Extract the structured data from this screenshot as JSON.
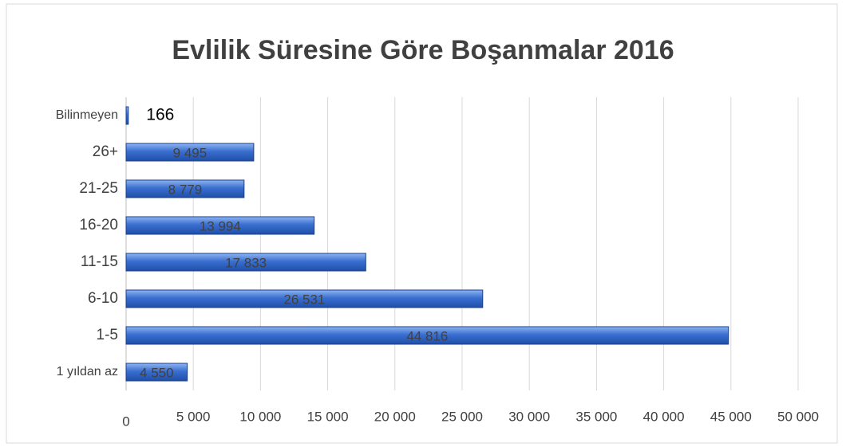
{
  "chart_data": {
    "type": "bar",
    "orientation": "horizontal",
    "title": "Evlilik Süresine Göre Boşanmalar 2016",
    "categories": [
      "1 yıldan az",
      "1-5",
      "6-10",
      "11-15",
      "16-20",
      "21-25",
      "26+",
      "Bilinmeyen"
    ],
    "values": [
      4550,
      44816,
      26531,
      17833,
      13994,
      8779,
      9495,
      166
    ],
    "value_labels": [
      "4 550",
      "44 816",
      "26 531",
      "17 833",
      "13 994",
      "8 779",
      "9 495",
      "166"
    ],
    "color": "#3a6fd0",
    "xlim": [
      0,
      50000
    ],
    "xticks": [
      0,
      {
        "value": 5000,
        "label": "5 000"
      },
      {
        "value": 10000,
        "label": "10 000"
      },
      {
        "value": 15000,
        "label": "15 000"
      },
      {
        "value": 20000,
        "label": "20 000"
      },
      {
        "value": 25000,
        "label": "25 000"
      },
      {
        "value": 30000,
        "label": "30 000"
      },
      {
        "value": 35000,
        "label": "35 000"
      },
      {
        "value": 40000,
        "label": "40 000"
      },
      {
        "value": 45000,
        "label": "45 000"
      },
      {
        "value": 50000,
        "label": "50 000"
      }
    ],
    "grid": true
  }
}
